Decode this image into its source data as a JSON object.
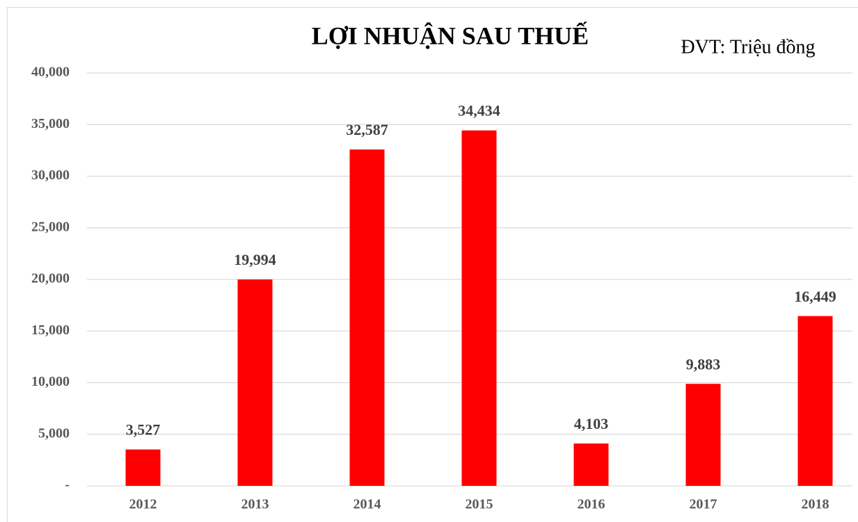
{
  "chart_data": {
    "type": "bar",
    "title": "LỢI NHUẬN SAU THUẾ",
    "annotation": "ĐVT: Triệu đồng",
    "categories": [
      "2012",
      "2013",
      "2014",
      "2015",
      "2016",
      "2017",
      "2018"
    ],
    "values": [
      3527,
      19994,
      32587,
      34434,
      4103,
      9883,
      16449
    ],
    "value_labels": [
      "3,527",
      "19,994",
      "32,587",
      "34,434",
      "4,103",
      "9,883",
      "16,449"
    ],
    "color": "#ff0000",
    "ylim": [
      0,
      40000
    ],
    "yticks": [
      {
        "value": 0,
        "label": "-"
      },
      {
        "value": 5000,
        "label": "5,000"
      },
      {
        "value": 10000,
        "label": "10,000"
      },
      {
        "value": 15000,
        "label": "15,000"
      },
      {
        "value": 20000,
        "label": "20,000"
      },
      {
        "value": 25000,
        "label": "25,000"
      },
      {
        "value": 30000,
        "label": "30,000"
      },
      {
        "value": 35000,
        "label": "35,000"
      },
      {
        "value": 40000,
        "label": "40,000"
      }
    ],
    "grid": true
  }
}
